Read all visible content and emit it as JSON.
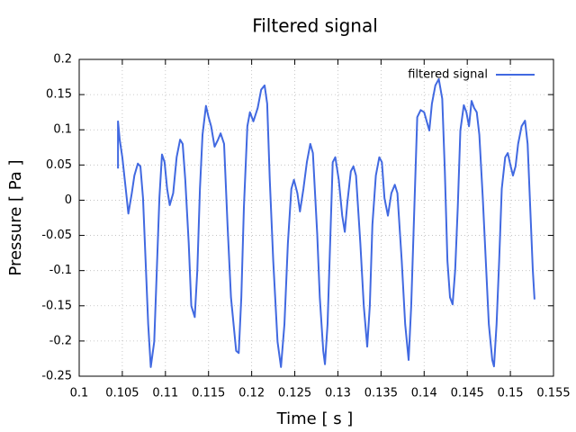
{
  "chart_data": {
    "type": "line",
    "title": "Filtered signal",
    "xlabel": "Time [ s ]",
    "ylabel": "Pressure [ Pa ]",
    "x": [
      0.1045,
      0.1045,
      0.1047,
      0.105,
      0.1054,
      0.1057,
      0.1061,
      0.1064,
      0.1068,
      0.1071,
      0.1074,
      0.1077,
      0.108,
      0.1083,
      0.1087,
      0.109,
      0.1093,
      0.1096,
      0.1099,
      0.1102,
      0.1105,
      0.1109,
      0.1113,
      0.1117,
      0.112,
      0.1123,
      0.1127,
      0.113,
      0.1134,
      0.1137,
      0.114,
      0.1143,
      0.1147,
      0.115,
      0.1153,
      0.1157,
      0.1161,
      0.1164,
      0.1168,
      0.1172,
      0.1176,
      0.1182,
      0.1185,
      0.1188,
      0.1191,
      0.1195,
      0.1198,
      0.1202,
      0.1207,
      0.1211,
      0.1215,
      0.1218,
      0.1221,
      0.1225,
      0.123,
      0.1234,
      0.1238,
      0.1242,
      0.1246,
      0.1249,
      0.1253,
      0.1256,
      0.126,
      0.1264,
      0.1268,
      0.1271,
      0.1276,
      0.1279,
      0.1283,
      0.1285,
      0.1288,
      0.1291,
      0.1294,
      0.1297,
      0.1301,
      0.1305,
      0.1308,
      0.1311,
      0.1315,
      0.1318,
      0.1321,
      0.1326,
      0.133,
      0.1334,
      0.1337,
      0.134,
      0.1344,
      0.1348,
      0.1351,
      0.1354,
      0.1358,
      0.1362,
      0.1366,
      0.1369,
      0.1374,
      0.1378,
      0.1382,
      0.1385,
      0.1389,
      0.1392,
      0.1396,
      0.14,
      0.1403,
      0.1406,
      0.1409,
      0.1413,
      0.1417,
      0.1421,
      0.1424,
      0.1427,
      0.143,
      0.1433,
      0.1436,
      0.1439,
      0.1442,
      0.1446,
      0.1449,
      0.1452,
      0.1455,
      0.1458,
      0.1461,
      0.1464,
      0.1468,
      0.1472,
      0.1475,
      0.1479,
      0.1481,
      0.1484,
      0.1487,
      0.149,
      0.1494,
      0.1497,
      0.15,
      0.1503,
      0.1506,
      0.1509,
      0.1513,
      0.1517,
      0.152,
      0.1523,
      0.1526,
      0.1528
    ],
    "series": [
      {
        "name": "filtered signal",
        "color": "#4169e1",
        "values": [
          0.045,
          0.112,
          0.086,
          0.061,
          0.016,
          -0.019,
          0.01,
          0.035,
          0.052,
          0.048,
          0.003,
          -0.086,
          -0.176,
          -0.237,
          -0.201,
          -0.099,
          0.003,
          0.065,
          0.054,
          0.016,
          -0.007,
          0.01,
          0.061,
          0.086,
          0.08,
          0.029,
          -0.061,
          -0.15,
          -0.166,
          -0.099,
          0.016,
          0.093,
          0.134,
          0.118,
          0.105,
          0.076,
          0.086,
          0.095,
          0.08,
          -0.035,
          -0.138,
          -0.214,
          -0.217,
          -0.138,
          -0.01,
          0.105,
          0.125,
          0.112,
          0.131,
          0.157,
          0.163,
          0.137,
          0.029,
          -0.086,
          -0.201,
          -0.237,
          -0.176,
          -0.061,
          0.016,
          0.029,
          0.01,
          -0.016,
          0.016,
          0.054,
          0.08,
          0.067,
          -0.048,
          -0.138,
          -0.214,
          -0.233,
          -0.176,
          -0.061,
          0.054,
          0.061,
          0.029,
          -0.022,
          -0.045,
          -0.003,
          0.041,
          0.048,
          0.035,
          -0.061,
          -0.15,
          -0.208,
          -0.15,
          -0.035,
          0.035,
          0.061,
          0.054,
          0.003,
          -0.022,
          0.01,
          0.022,
          0.01,
          -0.086,
          -0.176,
          -0.227,
          -0.15,
          0.003,
          0.118,
          0.128,
          0.125,
          0.112,
          0.099,
          0.137,
          0.163,
          0.172,
          0.144,
          0.041,
          -0.086,
          -0.138,
          -0.148,
          -0.099,
          -0.01,
          0.099,
          0.135,
          0.125,
          0.105,
          0.141,
          0.131,
          0.125,
          0.093,
          0.003,
          -0.099,
          -0.176,
          -0.227,
          -0.236,
          -0.176,
          -0.086,
          0.016,
          0.061,
          0.067,
          0.05,
          0.035,
          0.048,
          0.08,
          0.105,
          0.113,
          0.08,
          -0.01,
          -0.099,
          -0.141
        ]
      }
    ],
    "xlim": [
      0.1,
      0.155
    ],
    "xticks": [
      0.1,
      0.105,
      0.11,
      0.115,
      0.12,
      0.125,
      0.13,
      0.135,
      0.14,
      0.145,
      0.15,
      0.155
    ],
    "ylim": [
      -0.25,
      0.2
    ],
    "yticks": [
      -0.25,
      -0.2,
      -0.15,
      -0.1,
      -0.05,
      0,
      0.05,
      0.1,
      0.15,
      0.2
    ],
    "grid": true,
    "legend": "top-right"
  }
}
